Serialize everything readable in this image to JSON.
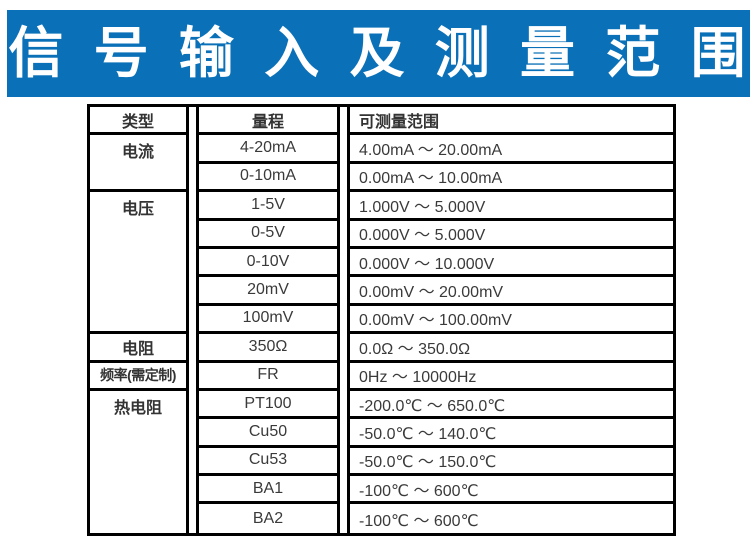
{
  "banner": {
    "title": "信 号 输 入 及 测 量 范 围",
    "background_color": "#0a70b8",
    "text_color": "#ffffff"
  },
  "table": {
    "border_color": "#000000",
    "text_color": "#3a3a3a",
    "columns": [
      "类型",
      "量程",
      "可测量范围"
    ],
    "groups": [
      {
        "type": "电流",
        "rows": [
          {
            "range": "4-20mA",
            "measure": "4.00mA ～ 20.00mA"
          },
          {
            "range": "0-10mA",
            "measure": "0.00mA ～ 10.00mA"
          }
        ]
      },
      {
        "type": "电压",
        "rows": [
          {
            "range": "1-5V",
            "measure": "1.000V ～ 5.000V"
          },
          {
            "range": "0-5V",
            "measure": "0.000V ～ 5.000V"
          },
          {
            "range": "0-10V",
            "measure": "0.000V ～ 10.000V"
          },
          {
            "range": "20mV",
            "measure": "0.00mV ～ 20.00mV"
          },
          {
            "range": "100mV",
            "measure": "0.00mV ～ 100.00mV"
          }
        ]
      },
      {
        "type": "电阻",
        "rows": [
          {
            "range": "350Ω",
            "measure": "0.0Ω ～ 350.0Ω"
          }
        ]
      },
      {
        "type": "频率(需定制)",
        "rows": [
          {
            "range": "FR",
            "measure": "0Hz ～ 10000Hz"
          }
        ]
      },
      {
        "type": "热电阻",
        "rows": [
          {
            "range": "PT100",
            "measure": "-200.0℃ ～ 650.0℃"
          },
          {
            "range": "Cu50",
            "measure": "-50.0℃ ～ 140.0℃"
          },
          {
            "range": "Cu53",
            "measure": "-50.0℃ ～ 150.0℃"
          },
          {
            "range": "BA1",
            "measure": "-100℃ ～ 600℃"
          },
          {
            "range": "BA2",
            "measure": "-100℃ ～ 600℃"
          }
        ]
      }
    ]
  }
}
